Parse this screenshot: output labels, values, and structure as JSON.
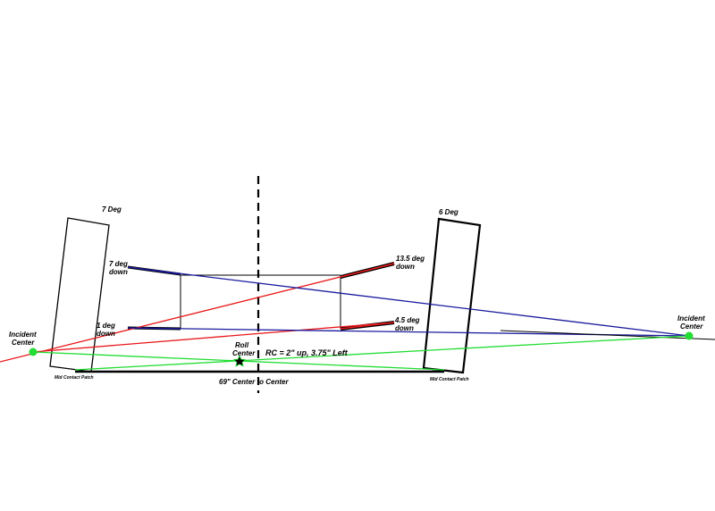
{
  "labels": {
    "left_tire_angle": "7 Deg",
    "right_tire_angle": "6 Deg",
    "left_upper_arm_1": "7 deg",
    "left_upper_arm_2": "down",
    "left_lower_arm_1": "1 deg",
    "left_lower_arm_2": "down",
    "right_upper_arm_1": "13.5 deg",
    "right_upper_arm_2": "down",
    "right_lower_arm_1": "4.5 deg",
    "right_lower_arm_2": "down",
    "left_ic_1": "Incident",
    "left_ic_2": "Center",
    "right_ic_1": "Incident",
    "right_ic_2": "Center",
    "roll_center_1": "Roll",
    "roll_center_2": "Center",
    "rc_note": "RC = 2\" up, 3.75\" Left",
    "track_width": "69\" Center to Center",
    "left_contact_patch": "Mid Contact Patch",
    "right_contact_patch": "Mid Contact Patch"
  },
  "colors": {
    "red_lines": "#e8191c",
    "blue_lines": "#1a1a9e",
    "green_lines": "#22dd33",
    "structure": "#000000"
  }
}
